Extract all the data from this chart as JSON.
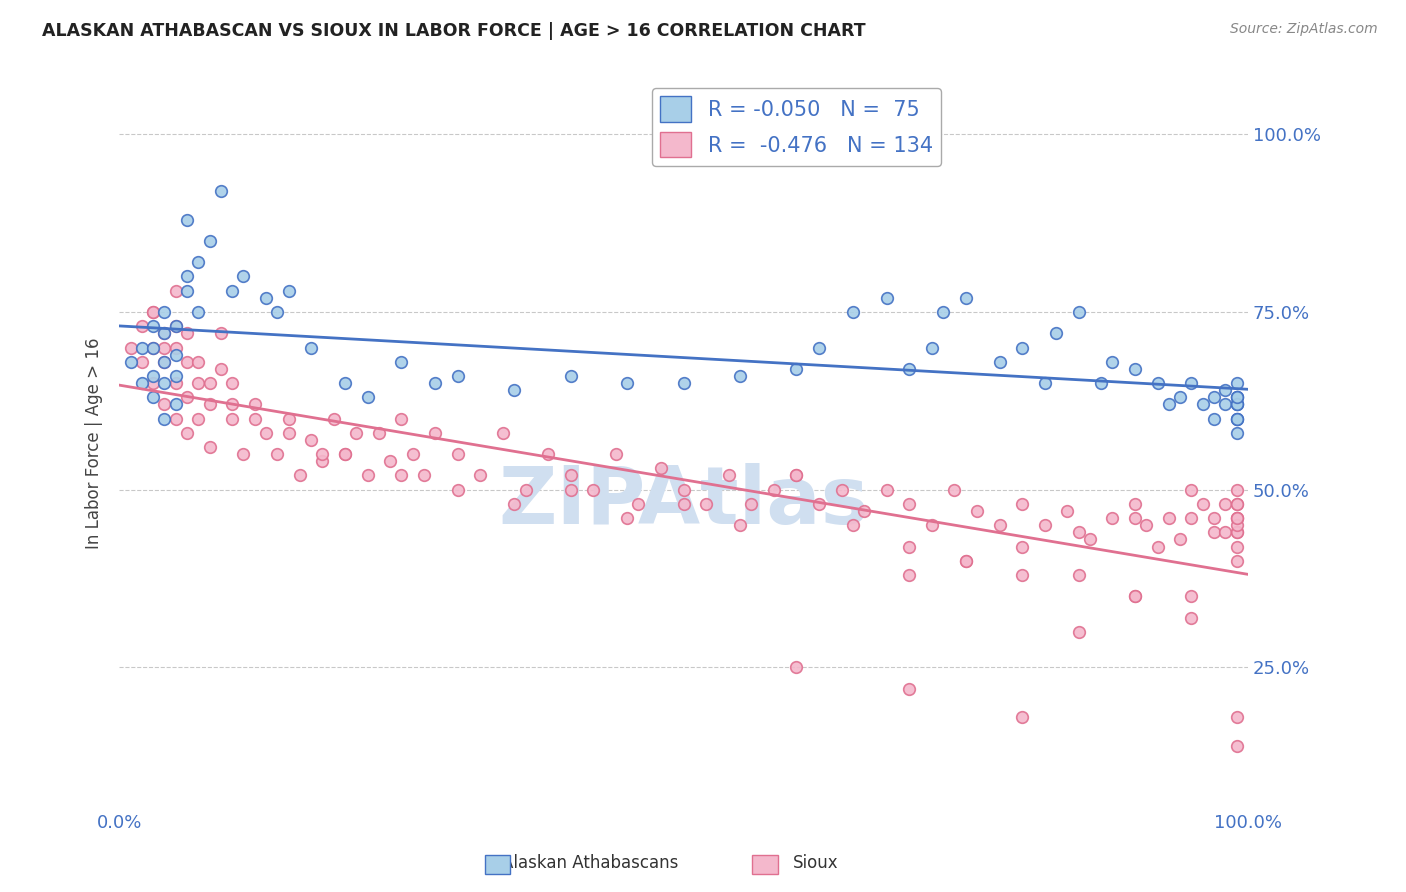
{
  "title": "ALASKAN ATHABASCAN VS SIOUX IN LABOR FORCE | AGE > 16 CORRELATION CHART",
  "source_text": "Source: ZipAtlas.com",
  "ylabel": "In Labor Force | Age > 16",
  "right_ytick_labels": [
    "100.0%",
    "75.0%",
    "50.0%",
    "25.0%"
  ],
  "right_ytick_values": [
    1.0,
    0.75,
    0.5,
    0.25
  ],
  "xlim": [
    0.0,
    1.0
  ],
  "ylim": [
    0.05,
    1.08
  ],
  "xtick_labels": [
    "0.0%",
    "100.0%"
  ],
  "xtick_values": [
    0.0,
    1.0
  ],
  "legend_label_blue": "Alaskan Athabascans",
  "legend_label_pink": "Sioux",
  "R_blue": -0.05,
  "N_blue": 75,
  "R_pink": -0.476,
  "N_pink": 134,
  "blue_color": "#a8cfe8",
  "pink_color": "#f4b8cc",
  "blue_line_color": "#4472c4",
  "pink_line_color": "#e07090",
  "title_color": "#222222",
  "source_color": "#888888",
  "watermark_text": "ZIPAtlas",
  "watermark_color": "#d0dff0",
  "grid_color": "#bbbbbb",
  "legend_border_color": "#aaaaaa",
  "tick_color": "#4472c4",
  "blue_scatter_x": [
    0.01,
    0.02,
    0.02,
    0.03,
    0.03,
    0.03,
    0.03,
    0.04,
    0.04,
    0.04,
    0.04,
    0.04,
    0.05,
    0.05,
    0.05,
    0.05,
    0.06,
    0.06,
    0.06,
    0.07,
    0.07,
    0.08,
    0.09,
    0.1,
    0.11,
    0.13,
    0.14,
    0.15,
    0.17,
    0.2,
    0.22,
    0.25,
    0.28,
    0.3,
    0.35,
    0.4,
    0.45,
    0.5,
    0.55,
    0.6,
    0.62,
    0.65,
    0.68,
    0.7,
    0.72,
    0.73,
    0.75,
    0.78,
    0.8,
    0.82,
    0.83,
    0.85,
    0.87,
    0.88,
    0.9,
    0.92,
    0.93,
    0.94,
    0.95,
    0.96,
    0.97,
    0.97,
    0.98,
    0.98,
    0.99,
    0.99,
    0.99,
    0.99,
    0.99,
    0.99,
    0.99,
    0.99,
    0.99,
    0.99,
    0.99
  ],
  "blue_scatter_y": [
    0.68,
    0.65,
    0.7,
    0.63,
    0.66,
    0.7,
    0.73,
    0.6,
    0.65,
    0.68,
    0.72,
    0.75,
    0.62,
    0.66,
    0.69,
    0.73,
    0.88,
    0.78,
    0.8,
    0.75,
    0.82,
    0.85,
    0.92,
    0.78,
    0.8,
    0.77,
    0.75,
    0.78,
    0.7,
    0.65,
    0.63,
    0.68,
    0.65,
    0.66,
    0.64,
    0.66,
    0.65,
    0.65,
    0.66,
    0.67,
    0.7,
    0.75,
    0.77,
    0.67,
    0.7,
    0.75,
    0.77,
    0.68,
    0.7,
    0.65,
    0.72,
    0.75,
    0.65,
    0.68,
    0.67,
    0.65,
    0.62,
    0.63,
    0.65,
    0.62,
    0.6,
    0.63,
    0.62,
    0.64,
    0.6,
    0.62,
    0.63,
    0.65,
    0.6,
    0.62,
    0.63,
    0.58,
    0.6,
    0.62,
    0.63
  ],
  "pink_scatter_x": [
    0.01,
    0.02,
    0.02,
    0.03,
    0.03,
    0.03,
    0.04,
    0.04,
    0.04,
    0.05,
    0.05,
    0.05,
    0.05,
    0.06,
    0.06,
    0.06,
    0.07,
    0.07,
    0.08,
    0.08,
    0.09,
    0.09,
    0.1,
    0.1,
    0.11,
    0.12,
    0.13,
    0.14,
    0.15,
    0.16,
    0.17,
    0.18,
    0.19,
    0.2,
    0.21,
    0.22,
    0.23,
    0.24,
    0.25,
    0.26,
    0.27,
    0.28,
    0.3,
    0.32,
    0.34,
    0.36,
    0.38,
    0.4,
    0.42,
    0.44,
    0.46,
    0.48,
    0.5,
    0.52,
    0.54,
    0.56,
    0.58,
    0.6,
    0.62,
    0.64,
    0.66,
    0.68,
    0.7,
    0.72,
    0.74,
    0.76,
    0.78,
    0.8,
    0.82,
    0.84,
    0.86,
    0.88,
    0.9,
    0.91,
    0.92,
    0.93,
    0.94,
    0.95,
    0.96,
    0.97,
    0.97,
    0.98,
    0.98,
    0.99,
    0.99,
    0.99,
    0.99,
    0.99,
    0.99,
    0.99,
    0.03,
    0.04,
    0.05,
    0.06,
    0.07,
    0.08,
    0.1,
    0.12,
    0.15,
    0.18,
    0.2,
    0.25,
    0.3,
    0.35,
    0.4,
    0.45,
    0.5,
    0.55,
    0.6,
    0.65,
    0.7,
    0.75,
    0.8,
    0.85,
    0.9,
    0.95,
    0.99,
    0.99,
    0.99,
    0.99,
    0.6,
    0.7,
    0.8,
    0.9,
    0.85,
    0.95,
    0.99,
    0.99,
    0.95,
    0.9,
    0.85,
    0.8,
    0.75,
    0.7
  ],
  "pink_scatter_y": [
    0.7,
    0.68,
    0.73,
    0.65,
    0.7,
    0.75,
    0.62,
    0.68,
    0.72,
    0.6,
    0.65,
    0.7,
    0.73,
    0.58,
    0.63,
    0.68,
    0.6,
    0.65,
    0.56,
    0.62,
    0.67,
    0.72,
    0.6,
    0.65,
    0.55,
    0.62,
    0.58,
    0.55,
    0.6,
    0.52,
    0.57,
    0.54,
    0.6,
    0.55,
    0.58,
    0.52,
    0.58,
    0.54,
    0.6,
    0.55,
    0.52,
    0.58,
    0.55,
    0.52,
    0.58,
    0.5,
    0.55,
    0.52,
    0.5,
    0.55,
    0.48,
    0.53,
    0.5,
    0.48,
    0.52,
    0.48,
    0.5,
    0.52,
    0.48,
    0.5,
    0.47,
    0.5,
    0.48,
    0.45,
    0.5,
    0.47,
    0.45,
    0.48,
    0.45,
    0.47,
    0.43,
    0.46,
    0.48,
    0.45,
    0.42,
    0.46,
    0.43,
    0.46,
    0.48,
    0.44,
    0.46,
    0.44,
    0.48,
    0.46,
    0.44,
    0.48,
    0.44,
    0.46,
    0.14,
    0.18,
    0.75,
    0.7,
    0.78,
    0.72,
    0.68,
    0.65,
    0.62,
    0.6,
    0.58,
    0.55,
    0.55,
    0.52,
    0.5,
    0.48,
    0.5,
    0.46,
    0.48,
    0.45,
    0.52,
    0.45,
    0.42,
    0.4,
    0.38,
    0.38,
    0.35,
    0.35,
    0.5,
    0.45,
    0.48,
    0.46,
    0.25,
    0.22,
    0.18,
    0.35,
    0.3,
    0.32,
    0.42,
    0.4,
    0.5,
    0.46,
    0.44,
    0.42,
    0.4,
    0.38
  ]
}
